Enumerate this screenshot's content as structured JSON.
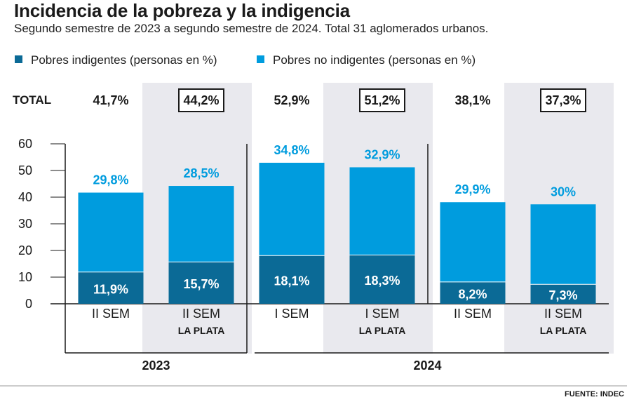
{
  "title": "Incidencia de la pobreza y la indigencia",
  "subtitle": "Segundo semestre de 2023 a segundo semestre de 2024. Total 31 aglomerados urbanos.",
  "legend": [
    {
      "label": "Pobres indigentes (personas en %)",
      "color": "#0b6a96"
    },
    {
      "label": "Pobres no indigentes (personas en %)",
      "color": "#009cde"
    }
  ],
  "total_label": "TOTAL",
  "source": "FUENTE: INDEC",
  "colors": {
    "indigent": "#0b6a96",
    "non_indigent": "#009cde",
    "highlight_bg": "#e9e9ee",
    "label_dark": "#1a1a1a"
  },
  "chart_data": {
    "type": "bar",
    "stacked": true,
    "categories": [
      "II SEM",
      "II SEM",
      "I SEM",
      "I SEM",
      "II SEM",
      "II SEM"
    ],
    "sublabels": [
      "",
      "LA PLATA",
      "",
      "LA PLATA",
      "",
      "LA PLATA"
    ],
    "highlighted": [
      false,
      true,
      false,
      true,
      false,
      true
    ],
    "totals": [
      "41,7%",
      "44,2%",
      "52,9%",
      "51,2%",
      "38,1%",
      "37,3%"
    ],
    "years": [
      {
        "label": "2023",
        "from": 0,
        "to": 1
      },
      {
        "label": "2024",
        "from": 2,
        "to": 5
      }
    ],
    "series": [
      {
        "name": "Pobres indigentes (personas en %)",
        "values": [
          11.9,
          15.7,
          18.1,
          18.3,
          8.2,
          7.3
        ],
        "labels": [
          "11,9%",
          "15,7%",
          "18,1%",
          "18,3%",
          "8,2%",
          "7,3%"
        ]
      },
      {
        "name": "Pobres no indigentes (personas en %)",
        "values": [
          29.8,
          28.5,
          34.8,
          32.9,
          29.9,
          30
        ],
        "labels": [
          "29,8%",
          "28,5%",
          "34,8%",
          "32,9%",
          "29,9%",
          "30%"
        ]
      }
    ],
    "yticks": [
      0,
      10,
      20,
      30,
      40,
      50,
      60
    ],
    "ylim": [
      0,
      60
    ]
  }
}
